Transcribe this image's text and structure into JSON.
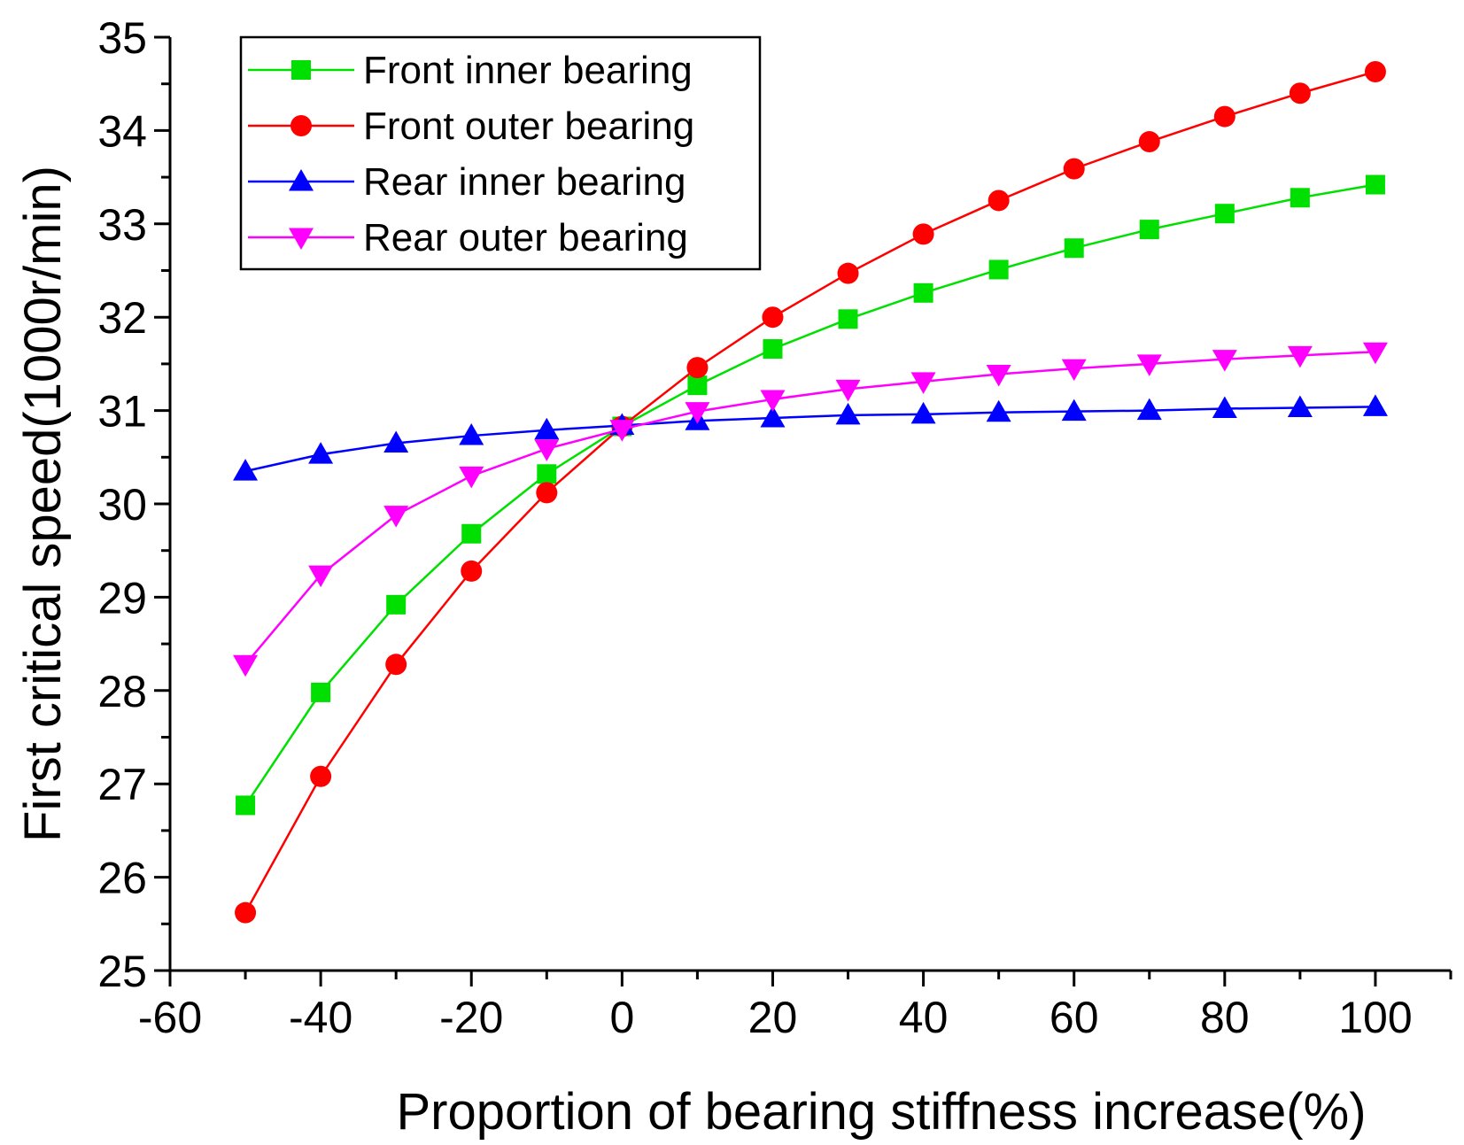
{
  "chart_data": {
    "type": "line",
    "title": "",
    "xlabel": "Proportion of bearing stiffness increase(%)",
    "ylabel": "First critical speed(1000r/min)",
    "xlim": [
      -60,
      110
    ],
    "ylim": [
      25,
      35
    ],
    "xticks": [
      -60,
      -40,
      -20,
      0,
      20,
      40,
      60,
      80,
      100
    ],
    "yticks": [
      25,
      26,
      27,
      28,
      29,
      30,
      31,
      32,
      33,
      34,
      35
    ],
    "legend_position": "top-left",
    "grid": false,
    "x": [
      -50,
      -40,
      -30,
      -20,
      -10,
      0,
      10,
      20,
      30,
      40,
      50,
      60,
      70,
      80,
      90,
      100
    ],
    "series": [
      {
        "name": "Front inner bearing",
        "color": "#00e000",
        "marker": "square",
        "values": [
          26.77,
          27.98,
          28.92,
          29.68,
          30.32,
          30.83,
          31.27,
          31.66,
          31.98,
          32.26,
          32.51,
          32.74,
          32.94,
          33.11,
          33.28,
          33.42
        ]
      },
      {
        "name": "Front outer bearing",
        "color": "#ff0000",
        "marker": "circle",
        "values": [
          25.62,
          27.08,
          28.28,
          29.28,
          30.12,
          30.83,
          31.46,
          32.0,
          32.47,
          32.89,
          33.25,
          33.59,
          33.88,
          34.15,
          34.4,
          34.63
        ]
      },
      {
        "name": "Rear inner bearing",
        "color": "#0000ff",
        "marker": "triangle-up",
        "values": [
          30.35,
          30.53,
          30.65,
          30.73,
          30.79,
          30.84,
          30.89,
          30.92,
          30.95,
          30.96,
          30.98,
          30.99,
          31.0,
          31.02,
          31.03,
          31.04
        ]
      },
      {
        "name": "Rear outer bearing",
        "color": "#ff00ff",
        "marker": "triangle-down",
        "values": [
          28.28,
          29.24,
          29.88,
          30.3,
          30.59,
          30.8,
          30.99,
          31.12,
          31.23,
          31.31,
          31.39,
          31.45,
          31.5,
          31.55,
          31.59,
          31.63
        ]
      }
    ]
  }
}
